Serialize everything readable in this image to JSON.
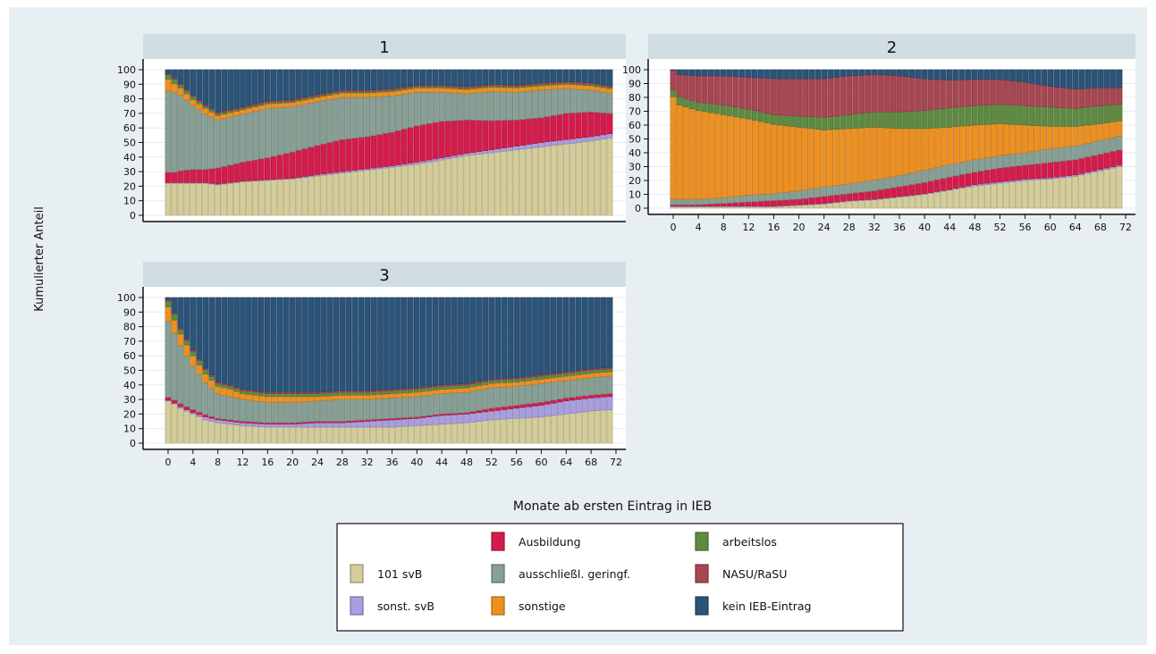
{
  "chart_data": {
    "type": "stacked-bar",
    "xlabel": "Monate ab ersten Eintrag in IEB",
    "ylabel": "Kumulierter Anteil",
    "ylim": [
      0,
      100
    ],
    "y_ticks": [
      0,
      10,
      20,
      30,
      40,
      50,
      60,
      70,
      80,
      90,
      100
    ],
    "x_ticks": [
      0,
      4,
      8,
      12,
      16,
      20,
      24,
      28,
      32,
      36,
      40,
      44,
      48,
      52,
      56,
      60,
      64,
      68,
      72
    ],
    "x_range": [
      0,
      71
    ],
    "categories_order": [
      "101 svB",
      "sonst. svB",
      "Ausbildung",
      "ausschließl. geringf.",
      "sonstige",
      "arbeitslos",
      "NASU/RaSU",
      "kein IEB-Eintrag"
    ],
    "colors": {
      "101 svB": "#d4cd9a",
      "sonst. svB": "#a99ee0",
      "Ausbildung": "#d41c4c",
      "ausschließl. geringf.": "#879f94",
      "sonstige": "#ee9020",
      "arbeitslos": "#5f8a42",
      "NASU/RaSU": "#a84652",
      "kein IEB-Eintrag": "#2c5378"
    },
    "legend": {
      "position": "bottom",
      "entries": [
        "Ausbildung",
        "arbeitslos",
        "101 svB",
        "ausschließl. geringf.",
        "NASU/RaSU",
        "sonst. svB",
        "sonstige",
        "kein IEB-Eintrag"
      ]
    },
    "panels": [
      {
        "title": "1",
        "keypoints": {
          "months": [
            0,
            1,
            2,
            4,
            6,
            8,
            12,
            16,
            20,
            24,
            28,
            32,
            36,
            40,
            44,
            48,
            52,
            56,
            60,
            64,
            68,
            71
          ],
          "101 svB": [
            22,
            22,
            22,
            22,
            22,
            21,
            23,
            24,
            25,
            27,
            29,
            31,
            33,
            35,
            38,
            41,
            43,
            45,
            47,
            49,
            51,
            53
          ],
          "sonst. svB": [
            0.5,
            0.5,
            0.5,
            0.5,
            0.5,
            0.5,
            0.5,
            0.5,
            0.5,
            1,
            1,
            1,
            1,
            1.5,
            1.5,
            1.5,
            2,
            2.5,
            3,
            3,
            3,
            3
          ],
          "Ausbildung": [
            7,
            7,
            8,
            9,
            9,
            11,
            13,
            15,
            18,
            20,
            22,
            22,
            23,
            25,
            25,
            23,
            20,
            18,
            17,
            18,
            17,
            14
          ],
          "ausschließl. geringf.": [
            56,
            55,
            52,
            44,
            38,
            33,
            33,
            34,
            31,
            30,
            29,
            27,
            25,
            23,
            20,
            18,
            20,
            19,
            19,
            17,
            15,
            14
          ],
          "sonstige": [
            8,
            6,
            5,
            4,
            4,
            3,
            3,
            3,
            3,
            3,
            3,
            3,
            3,
            3,
            3,
            3,
            3,
            3,
            3,
            3,
            3,
            3
          ],
          "arbeitslos": [
            3,
            3,
            2,
            2,
            1.5,
            1.5,
            1,
            1,
            1,
            1,
            1,
            1,
            1,
            1,
            1,
            1,
            1,
            1,
            1,
            1,
            1,
            1
          ],
          "NASU/RaSU": [
            1,
            1,
            1,
            1,
            1,
            1,
            1,
            1,
            1,
            1,
            1,
            1,
            1,
            1,
            1,
            1,
            1,
            1,
            1,
            1,
            1,
            1
          ]
        }
      },
      {
        "title": "2",
        "keypoints": {
          "months": [
            0,
            1,
            4,
            8,
            12,
            16,
            20,
            24,
            28,
            32,
            36,
            40,
            44,
            48,
            52,
            56,
            60,
            64,
            68,
            71
          ],
          "101 svB": [
            1,
            1,
            1,
            1,
            1,
            1,
            2,
            3,
            5,
            6,
            8,
            10,
            13,
            16,
            18,
            20,
            21,
            23,
            27,
            30
          ],
          "sonst. svB": [
            0.5,
            0.5,
            0.5,
            0.5,
            0.5,
            0.5,
            0.5,
            0.5,
            0.5,
            0.5,
            0.5,
            0.5,
            0.5,
            1,
            1,
            1,
            1,
            1,
            1,
            1
          ],
          "Ausbildung": [
            1,
            1,
            1,
            2,
            3,
            4,
            4,
            5,
            5,
            6,
            7,
            8,
            9,
            9,
            10,
            10,
            11,
            11,
            11,
            11
          ],
          "ausschließl. geringf.": [
            4,
            4,
            4,
            4,
            5,
            5,
            6,
            7,
            7,
            8,
            8,
            9,
            9,
            9,
            9,
            9,
            10,
            10,
            10,
            10
          ],
          "sonstige": [
            74,
            68,
            64,
            60,
            55,
            50,
            46,
            41,
            40,
            38,
            34,
            30,
            27,
            25,
            23,
            20,
            16,
            14,
            12,
            11
          ],
          "arbeitslos": [
            5,
            6,
            6,
            7,
            7,
            7,
            8,
            9,
            10,
            11,
            12,
            13,
            14,
            14,
            14,
            14,
            14,
            13,
            13,
            12
          ],
          "NASU/RaSU": [
            14,
            16,
            19,
            21,
            23,
            26,
            27,
            28,
            28,
            27,
            26,
            23,
            20,
            19,
            18,
            17,
            15,
            14,
            13,
            12
          ]
        }
      },
      {
        "title": "3",
        "keypoints": {
          "months": [
            0,
            1,
            2,
            4,
            6,
            8,
            10,
            12,
            16,
            20,
            24,
            28,
            32,
            36,
            40,
            44,
            48,
            52,
            56,
            60,
            64,
            68,
            71
          ],
          "101 svB": [
            29,
            27,
            24,
            20,
            16,
            14,
            13,
            12,
            11,
            11,
            11,
            11,
            11,
            11,
            12,
            13,
            14,
            16,
            17,
            18,
            20,
            22,
            23
          ],
          "sonst. svB": [
            0.5,
            0.5,
            1,
            1,
            2,
            2,
            2,
            2,
            2,
            2,
            3,
            3,
            4,
            5,
            5,
            6,
            6,
            6,
            7,
            8,
            9,
            9,
            9
          ],
          "Ausbildung": [
            2,
            2,
            2,
            2,
            1.5,
            1,
            1,
            1,
            1,
            1,
            1,
            1,
            1,
            1,
            1,
            1,
            1,
            2,
            2,
            2,
            2,
            2,
            2
          ],
          "ausschließl. geringf.": [
            52,
            46,
            40,
            30,
            22,
            17,
            16,
            15,
            14,
            14,
            14,
            15,
            14,
            14,
            14,
            14,
            14,
            14,
            13,
            13,
            12,
            12,
            12
          ],
          "sonstige": [
            10,
            9,
            8,
            7,
            6,
            5,
            5,
            4,
            4,
            4,
            3,
            3,
            3,
            3,
            3,
            3,
            3,
            3,
            3,
            3,
            3,
            3,
            3
          ],
          "arbeitslos": [
            4,
            4,
            3,
            3,
            3,
            2,
            2,
            2,
            2,
            2,
            2,
            2,
            2,
            2,
            2,
            2,
            2,
            2,
            2,
            2,
            2,
            2,
            2
          ],
          "NASU/RaSU": [
            1,
            1,
            1,
            1,
            1,
            1,
            1,
            1,
            1,
            1,
            1,
            1,
            1,
            1,
            1,
            1,
            1,
            1,
            1,
            1,
            1,
            1,
            1
          ]
        }
      }
    ]
  }
}
